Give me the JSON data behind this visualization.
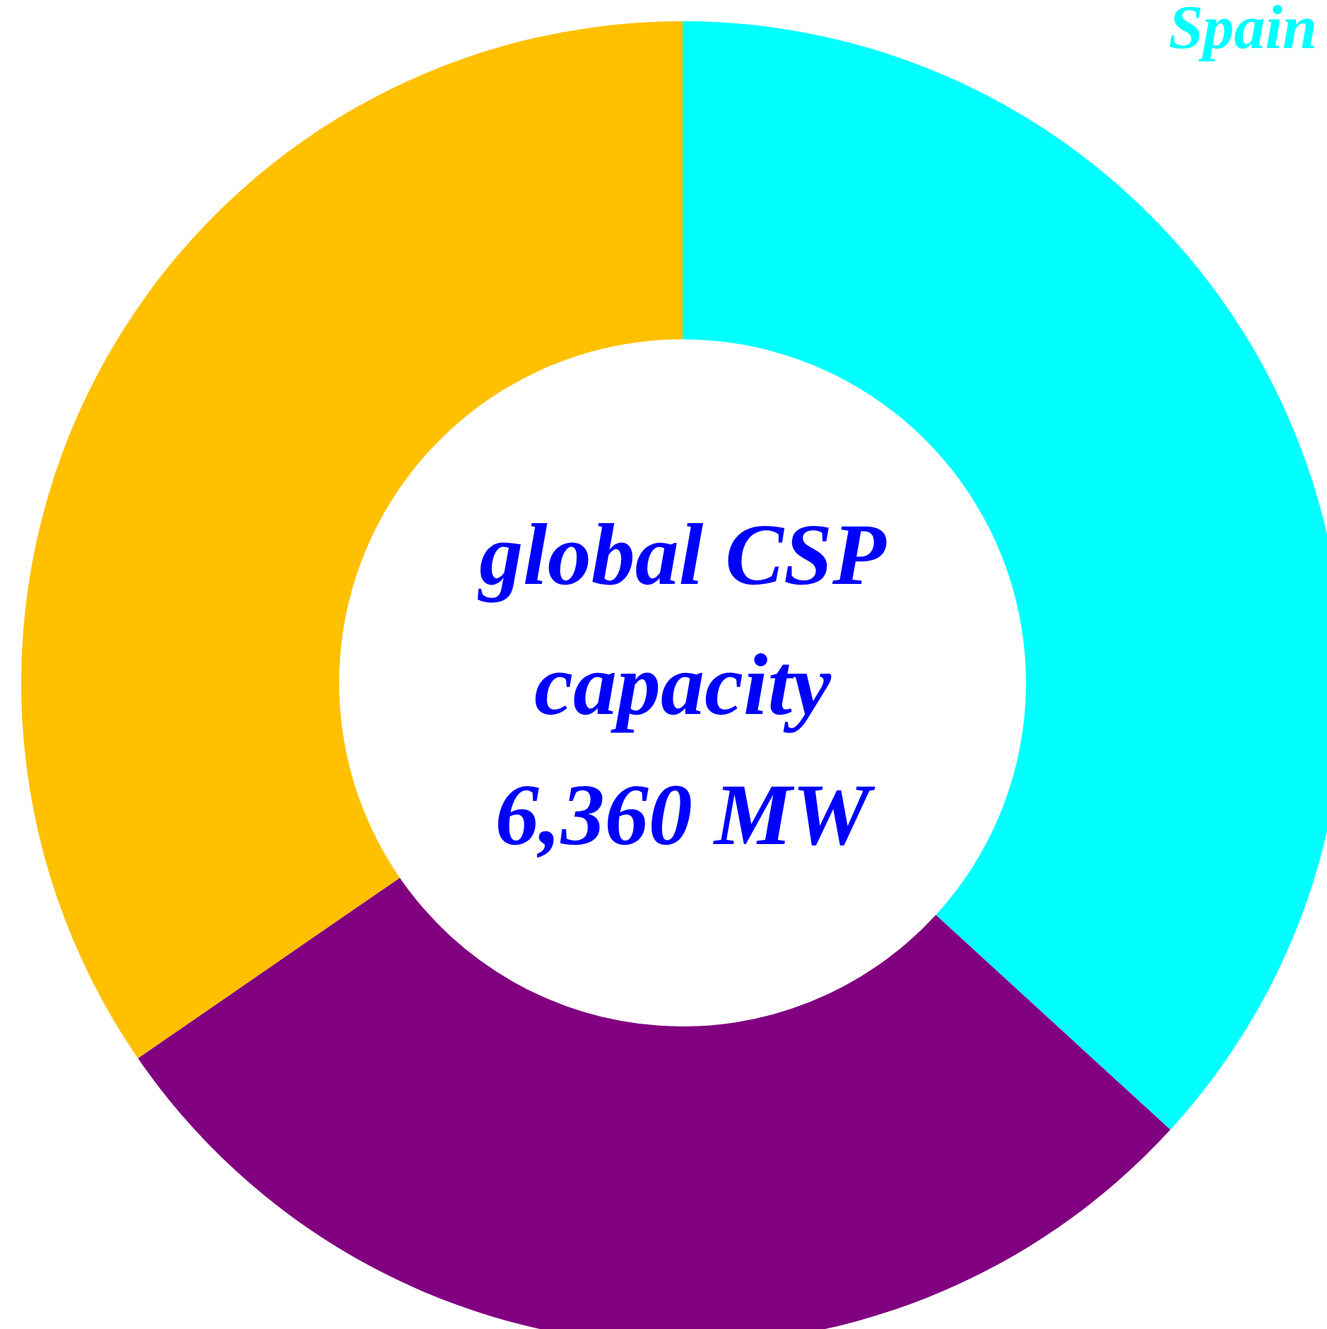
{
  "chart_data": {
    "type": "donut",
    "categories": [
      "Spain",
      null,
      null
    ],
    "values": [
      36.8,
      28.6,
      34.6
    ],
    "colors": [
      "#00ffff",
      "#800080",
      "#ffc000"
    ],
    "annotations": [
      "global CSP\ncapacity\n6,360 MW"
    ]
  }
}
